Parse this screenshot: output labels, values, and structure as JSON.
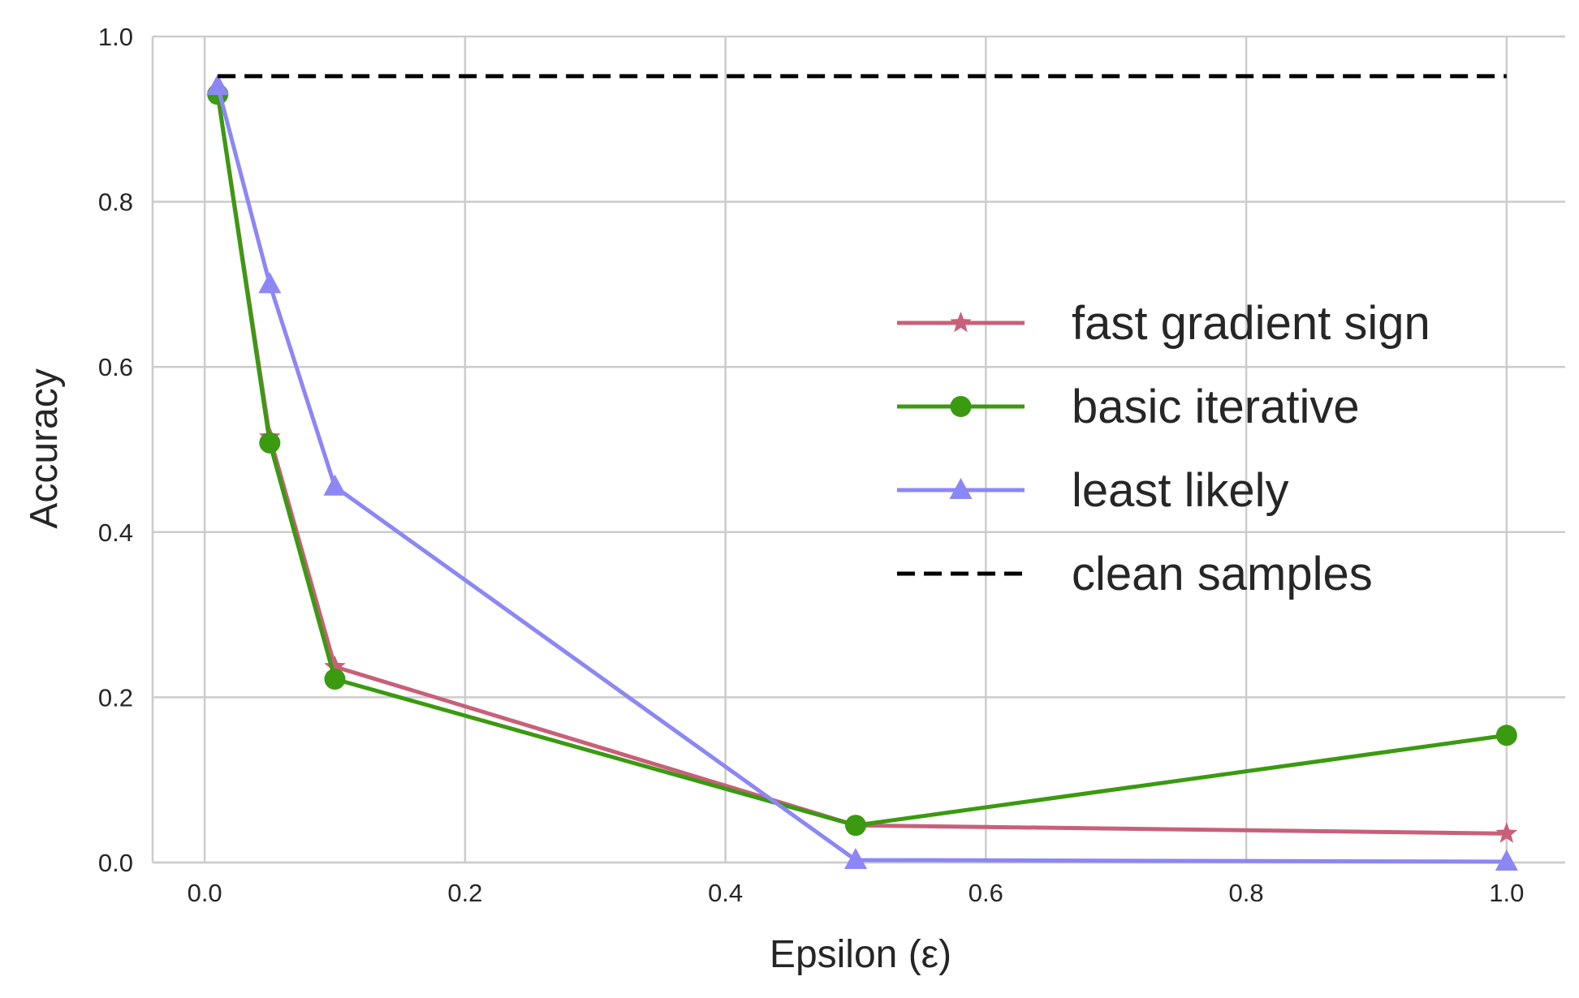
{
  "chart_data": {
    "type": "line",
    "xlabel": "Epsilon (ε)",
    "ylabel": "Accuracy",
    "xlim": [
      -0.04,
      1.045
    ],
    "ylim": [
      0.0,
      1.0
    ],
    "xticks": [
      0.0,
      0.2,
      0.4,
      0.6,
      0.8,
      1.0
    ],
    "xtick_labels": [
      "0.0",
      "0.2",
      "0.4",
      "0.6",
      "0.8",
      "1.0"
    ],
    "yticks": [
      0.0,
      0.2,
      0.4,
      0.6,
      0.8,
      1.0
    ],
    "ytick_labels": [
      "0.0",
      "0.2",
      "0.4",
      "0.6",
      "0.8",
      "1.0"
    ],
    "grid": true,
    "legend_position": "center-right",
    "series": [
      {
        "name": "fast gradient sign",
        "color": "#c8607a",
        "marker": "star",
        "linestyle": "solid",
        "x": [
          0.01,
          0.05,
          0.1,
          0.5,
          1.0
        ],
        "y": [
          0.93,
          0.515,
          0.237,
          0.045,
          0.035
        ]
      },
      {
        "name": "basic iterative",
        "color": "#3a9a10",
        "marker": "circle",
        "linestyle": "solid",
        "x": [
          0.01,
          0.05,
          0.1,
          0.5,
          1.0
        ],
        "y": [
          0.93,
          0.508,
          0.222,
          0.045,
          0.154
        ]
      },
      {
        "name": "least likely",
        "color": "#8c87f5",
        "marker": "triangle",
        "linestyle": "solid",
        "x": [
          0.01,
          0.05,
          0.1,
          0.5,
          1.0
        ],
        "y": [
          0.94,
          0.7,
          0.455,
          0.003,
          0.001
        ]
      },
      {
        "name": "clean samples",
        "color": "#000000",
        "marker": "none",
        "linestyle": "dashed",
        "x": [
          0.01,
          1.0
        ],
        "y": [
          0.952,
          0.952
        ]
      }
    ]
  }
}
